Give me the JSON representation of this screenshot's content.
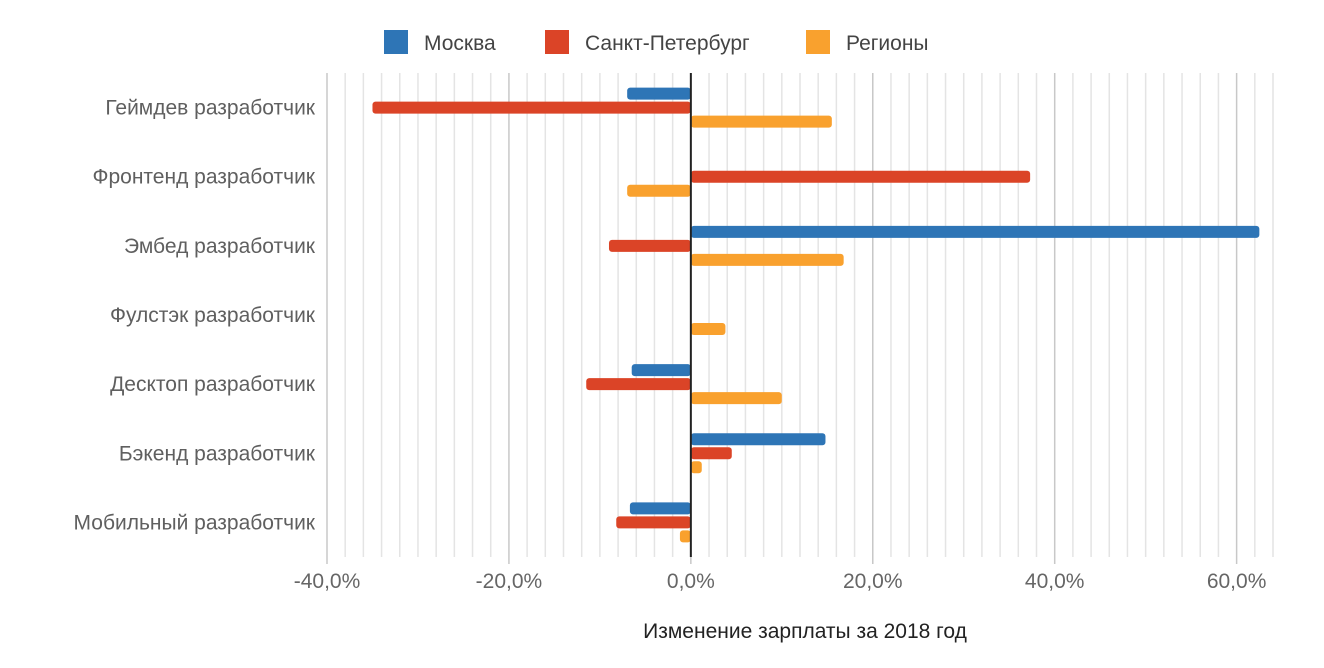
{
  "chart_data": {
    "type": "bar",
    "orientation": "horizontal",
    "categories": [
      "Геймдев разработчик",
      "Фронтенд разработчик",
      "Эмбед разработчик",
      "Фулстэк разработчик",
      "Десктоп разработчик",
      "Бэкенд разработчик",
      "Мобильный разработчик"
    ],
    "series": [
      {
        "name": "Москва",
        "color": "#2e75b6",
        "values": [
          -7.0,
          0,
          62.5,
          0,
          -6.5,
          14.8,
          -6.7
        ]
      },
      {
        "name": "Санкт-Петербург",
        "color": "#db4427",
        "values": [
          -35.0,
          37.3,
          -9.0,
          0,
          -11.5,
          4.5,
          -8.2
        ]
      },
      {
        "name": "Регионы",
        "color": "#f9a12e",
        "values": [
          15.5,
          -7.0,
          16.8,
          3.8,
          10.0,
          1.2,
          -1.2
        ]
      }
    ],
    "xlabel": "Изменение зарплаты за 2018 год",
    "ylabel": "",
    "xlim": [
      -40,
      64
    ],
    "x_ticks": [
      -40,
      -20,
      0,
      20,
      40,
      60
    ],
    "x_tick_labels": [
      "-40,0%",
      "-20,0%",
      "0,0%",
      "20,0%",
      "40,0%",
      "60,0%"
    ],
    "minor_grid_step": 2,
    "grid": true,
    "legend_position": "top"
  }
}
